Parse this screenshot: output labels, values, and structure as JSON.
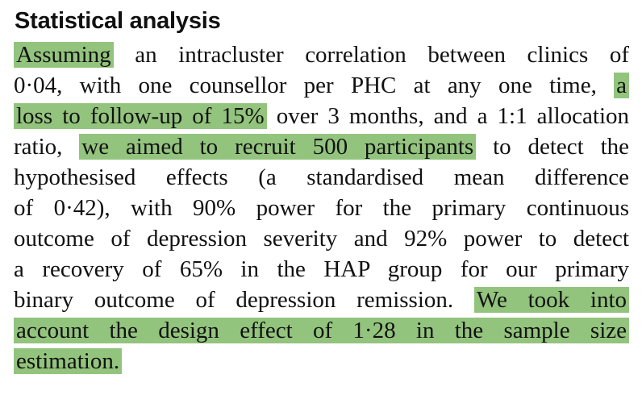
{
  "section": {
    "heading": "Statistical analysis"
  },
  "paragraph": {
    "highlight_color": "#93c47d",
    "lines": [
      {
        "hl": "Assuming",
        "plain": " an intracluster correlation between clinics of"
      },
      {
        "plain": "0·04, with one counsellor per PHC at any one time, ",
        "hl": "a"
      },
      {
        "hl": "loss to follow-up of 15%",
        "plain": " over 3 months, and a 1:1 allocation"
      },
      {
        "pre": "ratio, ",
        "hl": "we aimed to recruit 500 participants",
        "plain": " to detect the"
      },
      {
        "plain": "hypothesised effects (a standardised mean difference"
      },
      {
        "plain": "of 0·42), with 90% power for the primary continuous"
      },
      {
        "plain": "outcome of depression severity and 92% power to detect"
      },
      {
        "plain": "a recovery of 65% in the HAP group for our primary"
      },
      {
        "plain": "binary outcome of depression remission. ",
        "hl": "We took into"
      },
      {
        "hl": "account the design effect of 1·28 in the sample size"
      },
      {
        "hl": "estimation."
      }
    ]
  }
}
